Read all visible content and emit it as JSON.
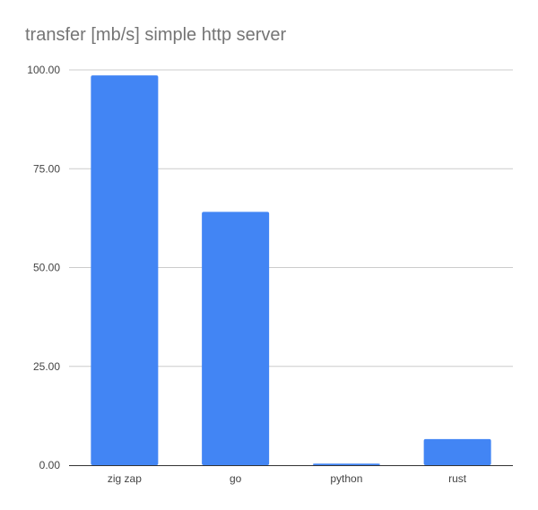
{
  "chart_data": {
    "type": "bar",
    "title": "transfer [mb/s] simple http server",
    "categories": [
      "zig zap",
      "go",
      "python",
      "rust"
    ],
    "values": [
      98.6,
      64.1,
      0.4,
      6.6
    ],
    "xlabel": "",
    "ylabel": "",
    "ylim": [
      0,
      100
    ],
    "yticks": [
      "0.00",
      "25.00",
      "50.00",
      "75.00",
      "100.00"
    ],
    "grid": true,
    "legend": "none",
    "bar_color": "#4285f4"
  }
}
